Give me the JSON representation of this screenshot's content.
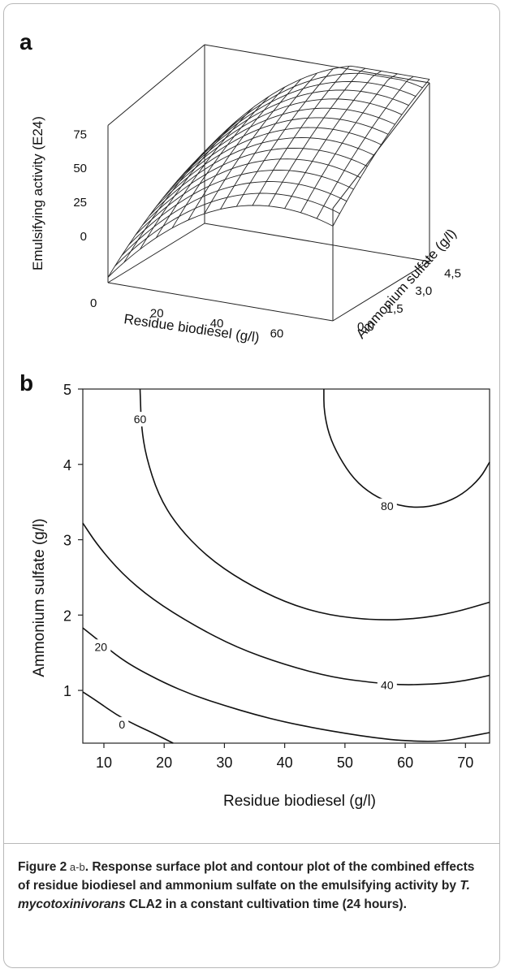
{
  "figure": {
    "panel_a_label": "a",
    "panel_b_label": "b",
    "caption": {
      "lead": "Figure 2",
      "range": " a-b",
      "text_before": ". Response surface plot and contour plot of the combined effects of residue biodiesel and ammonium sulfate on the emulsifying activity by ",
      "species": "T. mycotoxinivorans",
      "text_after": " CLA2 in a constant cultivation time (24 hours)."
    }
  },
  "chart_data": [
    {
      "type": "surface",
      "panel": "a",
      "x_label": "Residue biodiesel (g/l)",
      "y_label": "Ammonium sulfate (g/l)",
      "z_label": "Emulsifying activity (E24)",
      "x_ticks": [
        "0",
        "20",
        "40",
        "60"
      ],
      "y_ticks": [
        "0,0",
        "1,5",
        "3,0",
        "4,5"
      ],
      "z_ticks": [
        "0",
        "25",
        "50",
        "75"
      ],
      "x_range": [
        0,
        75
      ],
      "y_range": [
        0,
        5
      ],
      "z_range": [
        0,
        100
      ],
      "grid_divisions": 14
    },
    {
      "type": "contour",
      "panel": "b",
      "x_label": "Residue biodiesel (g/l)",
      "y_label": "Ammonium sulfate (g/l)",
      "x_ticks": [
        10,
        20,
        30,
        40,
        50,
        60,
        70
      ],
      "y_ticks": [
        1,
        2,
        3,
        4,
        5
      ],
      "x_range": [
        6.5,
        74
      ],
      "y_range": [
        0.3,
        5
      ],
      "contour_labels": [
        {
          "level": "60",
          "x": 16,
          "y": 4.6
        },
        {
          "level": "80",
          "x": 57,
          "y": 3.45
        },
        {
          "level": "20",
          "x": 9.5,
          "y": 1.58
        },
        {
          "level": "40",
          "x": 57,
          "y": 1.07
        },
        {
          "level": "0",
          "x": 13,
          "y": 0.55
        }
      ],
      "contours": [
        {
          "level": 0,
          "points": [
            [
              6.5,
              0.98
            ],
            [
              9,
              0.85
            ],
            [
              12,
              0.68
            ],
            [
              15,
              0.55
            ],
            [
              18,
              0.44
            ],
            [
              21.5,
              0.3
            ]
          ]
        },
        {
          "level": 20,
          "points": [
            [
              6.5,
              1.83
            ],
            [
              9,
              1.67
            ],
            [
              12,
              1.47
            ],
            [
              15,
              1.31
            ],
            [
              20,
              1.1
            ],
            [
              25,
              0.93
            ],
            [
              30,
              0.8
            ],
            [
              35,
              0.68
            ],
            [
              40,
              0.58
            ],
            [
              45,
              0.5
            ],
            [
              50,
              0.43
            ],
            [
              55,
              0.37
            ],
            [
              60,
              0.33
            ],
            [
              66,
              0.32
            ],
            [
              70,
              0.38
            ],
            [
              74,
              0.44
            ]
          ]
        },
        {
          "level": 40,
          "points": [
            [
              6.5,
              3.22
            ],
            [
              9,
              2.92
            ],
            [
              13,
              2.55
            ],
            [
              18,
              2.21
            ],
            [
              25,
              1.86
            ],
            [
              32,
              1.57
            ],
            [
              40,
              1.34
            ],
            [
              48,
              1.17
            ],
            [
              55,
              1.1
            ],
            [
              60,
              1.07
            ],
            [
              66,
              1.09
            ],
            [
              70,
              1.13
            ],
            [
              74,
              1.2
            ]
          ]
        },
        {
          "level": 60,
          "points": [
            [
              16,
              5
            ],
            [
              16.2,
              4.5
            ],
            [
              17,
              4.1
            ],
            [
              19,
              3.6
            ],
            [
              22,
              3.2
            ],
            [
              27,
              2.78
            ],
            [
              33,
              2.45
            ],
            [
              40,
              2.17
            ],
            [
              47,
              2.0
            ],
            [
              55,
              1.93
            ],
            [
              62,
              1.95
            ],
            [
              68,
              2.03
            ],
            [
              74,
              2.17
            ]
          ]
        },
        {
          "level": 80,
          "points": [
            [
              46.5,
              5
            ],
            [
              46.5,
              4.72
            ],
            [
              47.3,
              4.4
            ],
            [
              49,
              4.1
            ],
            [
              51.5,
              3.8
            ],
            [
              54.5,
              3.6
            ],
            [
              58,
              3.47
            ],
            [
              62,
              3.42
            ],
            [
              66,
              3.47
            ],
            [
              69.5,
              3.6
            ],
            [
              72.5,
              3.82
            ],
            [
              74,
              4.03
            ]
          ]
        }
      ]
    }
  ]
}
